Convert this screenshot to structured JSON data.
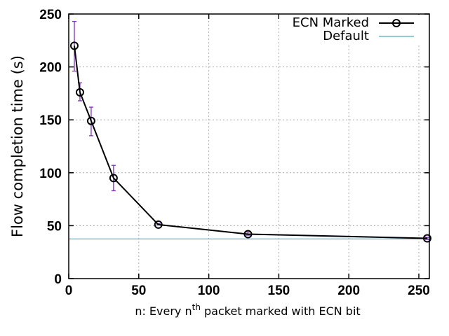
{
  "chart_data": {
    "type": "line",
    "xlabel_prefix": "n: Every n",
    "xlabel_sup": "th",
    "xlabel_suffix": " packet marked with ECN bit",
    "ylabel": "Flow completion time (s)",
    "xlim": [
      0,
      256
    ],
    "ylim": [
      0,
      250
    ],
    "xticks": [
      0,
      50,
      100,
      150,
      200,
      250
    ],
    "yticks": [
      0,
      50,
      100,
      150,
      200,
      250
    ],
    "grid": true,
    "legend_position": "top-right",
    "series": [
      {
        "name": "ECN Marked",
        "color": "#000000",
        "marker": "circle",
        "x": [
          4,
          8,
          16,
          32,
          64,
          128,
          256
        ],
        "y": [
          220,
          176,
          149,
          95,
          51,
          42,
          38
        ],
        "err_low": [
          196,
          168,
          135,
          83,
          51,
          41,
          37
        ],
        "err_high": [
          243,
          185,
          162,
          107,
          52,
          44,
          39
        ],
        "err_color": "#7B2FBE"
      },
      {
        "name": "Default",
        "color": "#4AAFB5",
        "y_constant": 37.5
      }
    ]
  }
}
